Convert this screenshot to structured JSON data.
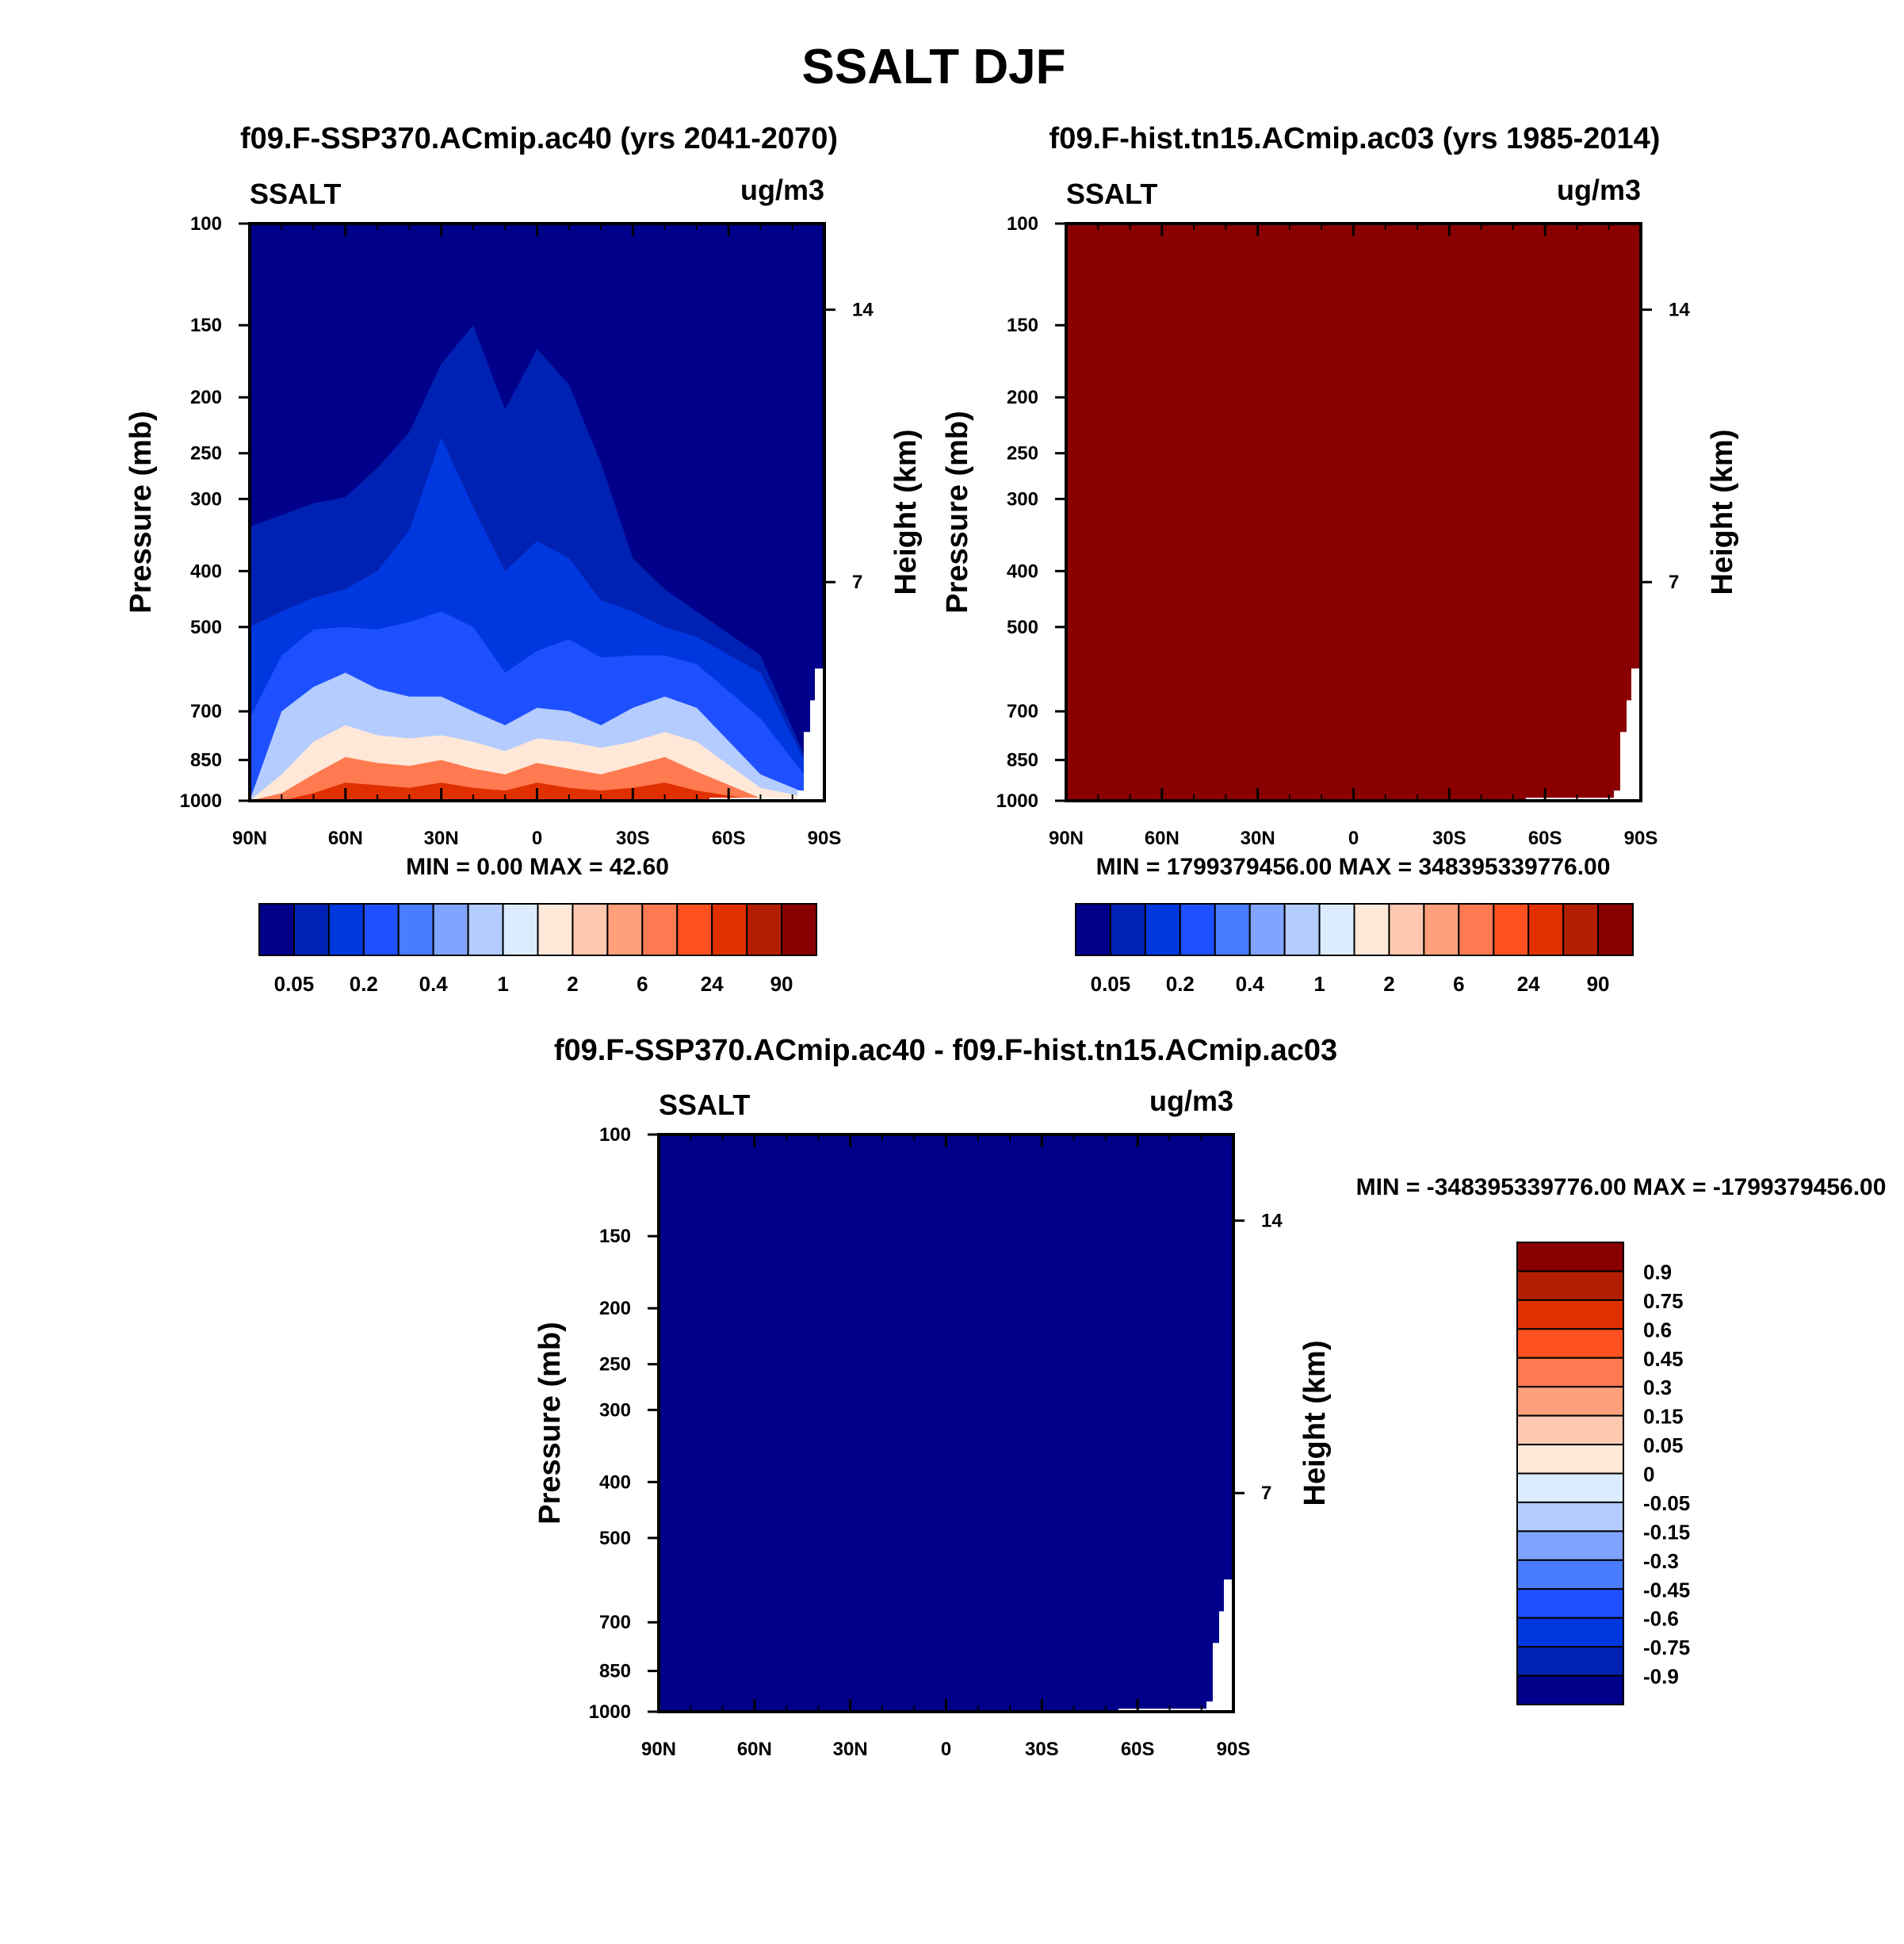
{
  "figure": {
    "title": "SSALT DJF"
  },
  "colors": {
    "abs_levels": [
      "#00008a",
      "#0022b4",
      "#0038e0",
      "#1e50ff",
      "#4a7cff",
      "#80a4ff",
      "#b4ccff",
      "#dcecff",
      "#ffe8d8",
      "#ffc8b0",
      "#ffa07a",
      "#ff7a50",
      "#ff5020",
      "#e03000",
      "#b41e00",
      "#8a0000"
    ],
    "diff_levels": [
      "#8a0000",
      "#b41e00",
      "#e03000",
      "#ff5020",
      "#ff7a50",
      "#ffa07a",
      "#ffc8b0",
      "#ffe8d8",
      "#dcecff",
      "#b4ccff",
      "#80a4ff",
      "#4a7cff",
      "#1e50ff",
      "#0038e0",
      "#0022b4",
      "#00008a"
    ]
  },
  "chart_data": [
    {
      "id": "panel1",
      "type": "heatmap",
      "title": "f09.F-SSP370.ACmip.ac40 (yrs 2041-2070)",
      "variable_label": "SSALT",
      "units_label": "ug/m3",
      "xlabel": "",
      "ylabel": "Pressure (mb)",
      "y2label": "Height (km)",
      "x_ticks": [
        "90N",
        "60N",
        "30N",
        "0",
        "30S",
        "60S",
        "90S"
      ],
      "x_range": [
        90,
        -90
      ],
      "y_ticks": [
        "100",
        "150",
        "200",
        "250",
        "300",
        "400",
        "500",
        "700",
        "850",
        "1000"
      ],
      "y_range_mb": [
        100,
        1000
      ],
      "y2_ticks": [
        "14",
        "7"
      ],
      "min_max_text": "MIN =   0.00  MAX =  42.60",
      "colorbar_labels": [
        "0.05",
        "0.2",
        "0.4",
        "1",
        "2",
        "6",
        "24",
        "90"
      ],
      "contour_levels_estimate": [
        {
          "level_index": 1,
          "top_mb": [
            335,
            320,
            305,
            298,
            265,
            230,
            175,
            150,
            210,
            165,
            190,
            260,
            380,
            430,
            470,
            560,
            1000
          ]
        },
        {
          "level_index": 2,
          "top_mb": [
            500,
            470,
            445,
            430,
            400,
            340,
            235,
            310,
            400,
            355,
            380,
            450,
            470,
            500,
            520,
            600,
            1000
          ]
        },
        {
          "level_index": 3,
          "top_mb": [
            720,
            560,
            505,
            500,
            505,
            490,
            470,
            500,
            600,
            550,
            525,
            565,
            560,
            560,
            580,
            720,
            1000
          ]
        },
        {
          "level_index": 6,
          "top_mb": [
            1000,
            700,
            635,
            600,
            640,
            660,
            660,
            700,
            740,
            690,
            700,
            740,
            690,
            660,
            690,
            900,
            1000
          ]
        },
        {
          "level_index": 8,
          "top_mb": [
            1000,
            900,
            790,
            740,
            770,
            780,
            770,
            790,
            820,
            780,
            790,
            810,
            790,
            760,
            790,
            950,
            1000
          ]
        },
        {
          "level_index": 11,
          "top_mb": [
            1000,
            970,
            900,
            840,
            860,
            870,
            850,
            880,
            900,
            860,
            880,
            900,
            870,
            840,
            890,
            990,
            1000
          ]
        },
        {
          "level_index": 13,
          "top_mb": [
            1000,
            1000,
            970,
            930,
            940,
            950,
            930,
            950,
            960,
            930,
            950,
            960,
            950,
            930,
            960,
            1000,
            1000
          ]
        }
      ],
      "contour_lats": [
        90,
        80,
        70,
        60,
        50,
        40,
        30,
        20,
        10,
        0,
        -10,
        -20,
        -30,
        -40,
        -50,
        -70,
        -90
      ]
    },
    {
      "id": "panel2",
      "type": "heatmap",
      "title": "f09.F-hist.tn15.ACmip.ac03 (yrs 1985-2014)",
      "variable_label": "SSALT",
      "units_label": "ug/m3",
      "ylabel": "Pressure (mb)",
      "y2label": "Height (km)",
      "x_ticks": [
        "90N",
        "60N",
        "30N",
        "0",
        "30S",
        "60S",
        "90S"
      ],
      "x_range": [
        90,
        -90
      ],
      "y_ticks": [
        "100",
        "150",
        "200",
        "250",
        "300",
        "400",
        "500",
        "700",
        "850",
        "1000"
      ],
      "y_range_mb": [
        100,
        1000
      ],
      "y2_ticks": [
        "14",
        "7"
      ],
      "min_max_text": "MIN = 1799379456.00  MAX = 348395339776.00",
      "colorbar_labels": [
        "0.05",
        "0.2",
        "0.4",
        "1",
        "2",
        "6",
        "24",
        "90"
      ],
      "uniform_level_index": 15
    },
    {
      "id": "panel3",
      "type": "heatmap",
      "title": "f09.F-SSP370.ACmip.ac40 - f09.F-hist.tn15.ACmip.ac03",
      "variable_label": "SSALT",
      "units_label": "ug/m3",
      "ylabel": "Pressure (mb)",
      "y2label": "Height (km)",
      "x_ticks": [
        "90N",
        "60N",
        "30N",
        "0",
        "30S",
        "60S",
        "90S"
      ],
      "x_range": [
        90,
        -90
      ],
      "y_ticks": [
        "100",
        "150",
        "200",
        "250",
        "300",
        "400",
        "500",
        "700",
        "850",
        "1000"
      ],
      "y_range_mb": [
        100,
        1000
      ],
      "y2_ticks": [
        "14",
        "7"
      ],
      "min_max_text": "MIN = -348395339776.00  MAX = -1799379456.00",
      "colorbar_labels": [
        "0.9",
        "0.75",
        "0.6",
        "0.45",
        "0.3",
        "0.15",
        "0.05",
        "0",
        "-0.05",
        "-0.15",
        "-0.3",
        "-0.45",
        "-0.6",
        "-0.75",
        "-0.9"
      ],
      "uniform_level_index": 15
    }
  ]
}
